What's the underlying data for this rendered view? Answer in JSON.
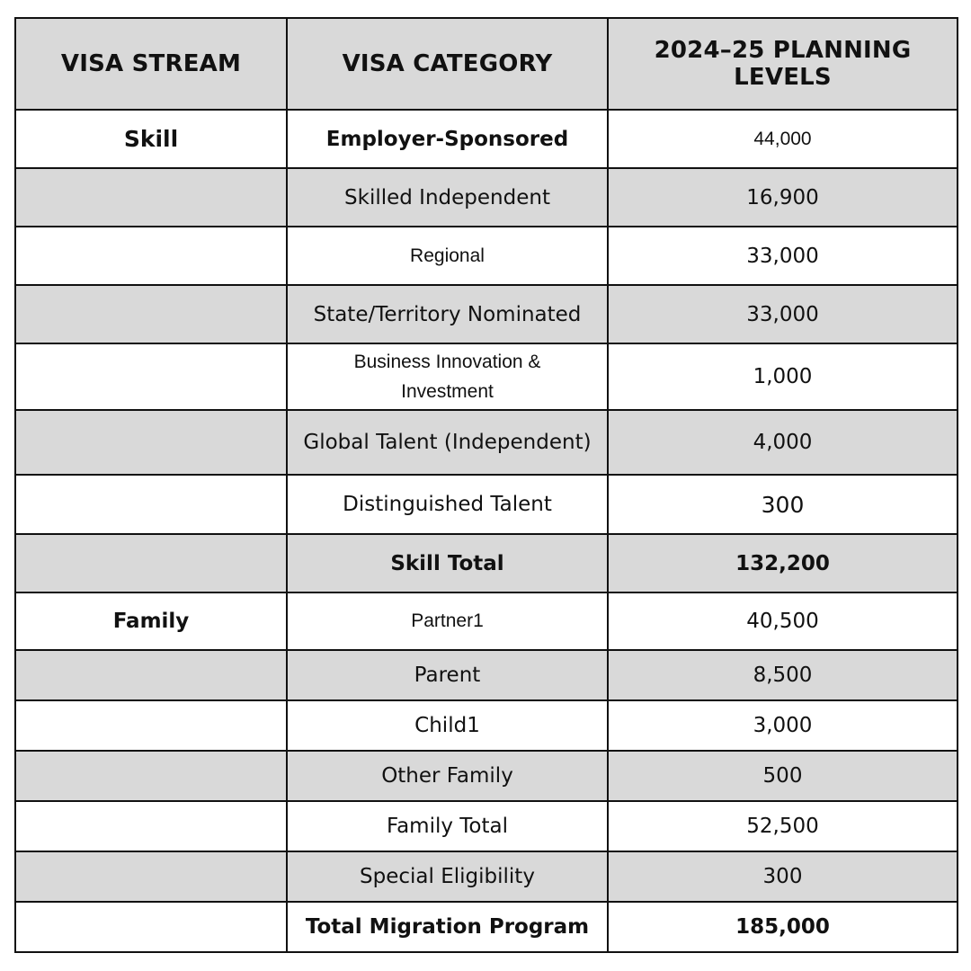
{
  "table": {
    "headers": {
      "stream": "VISA STREAM",
      "category": "VISA CATEGORY",
      "levels": "2024–25 PLANNING LEVELS"
    },
    "rows": [
      {
        "stream": "Skill",
        "category": "Employer-Sponsored",
        "value": "44,000"
      },
      {
        "stream": "",
        "category": "Skilled Independent",
        "value": "16,900"
      },
      {
        "stream": "",
        "category": "Regional",
        "value": "33,000"
      },
      {
        "stream": "",
        "category": "State/Territory Nominated",
        "value": "33,000"
      },
      {
        "stream": "",
        "category": "Business Innovation & Investment",
        "value": "1,000"
      },
      {
        "stream": "",
        "category": "Global Talent (Independent)",
        "value": "4,000"
      },
      {
        "stream": "",
        "category": "Distinguished Talent",
        "value": "300"
      },
      {
        "stream": "",
        "category": "Skill Total",
        "value": "132,200"
      },
      {
        "stream": "Family",
        "category": "Partner1",
        "value": "40,500"
      },
      {
        "stream": "",
        "category": "Parent",
        "value": "8,500"
      },
      {
        "stream": "",
        "category": "Child1",
        "value": "3,000"
      },
      {
        "stream": "",
        "category": "Other Family",
        "value": "500"
      },
      {
        "stream": "",
        "category": "Family Total",
        "value": "52,500"
      },
      {
        "stream": "",
        "category": "Special Eligibility",
        "value": "300"
      },
      {
        "stream": "",
        "category": "Total Migration Program",
        "value": "185,000"
      }
    ]
  }
}
